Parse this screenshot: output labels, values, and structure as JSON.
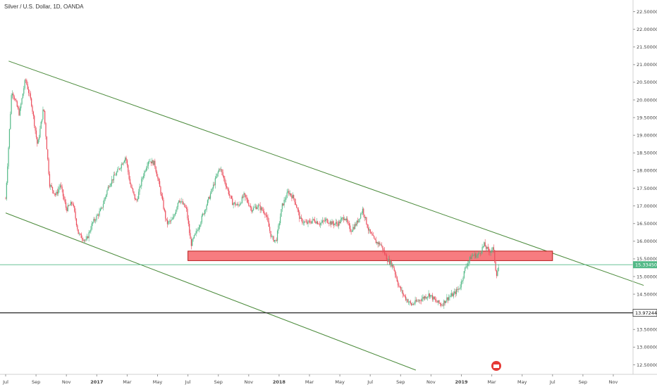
{
  "header": {
    "title": "Silver / U.S. Dollar, 1D, OANDA"
  },
  "colors": {
    "bull": "#53b987",
    "bear": "#eb4d5c",
    "trendline": "#4a8a3a",
    "zone_fill": "#f77c80",
    "zone_stroke": "#b71c1c",
    "price_line": "#53b987",
    "support_line": "#333333"
  },
  "chart_data": {
    "type": "candlestick",
    "title": "Silver / U.S. Dollar, 1D, OANDA",
    "y_ticks": [
      "12.50000",
      "13.00000",
      "13.50000",
      "14.00000",
      "14.50000",
      "15.00000",
      "15.50000",
      "16.00000",
      "16.50000",
      "17.00000",
      "17.50000",
      "18.00000",
      "18.50000",
      "19.00000",
      "19.50000",
      "20.00000",
      "20.50000",
      "21.00000",
      "21.50000",
      "22.00000",
      "22.50000"
    ],
    "ylim": [
      12.35,
      22.75
    ],
    "x_ticks": [
      {
        "label": "Jul",
        "m": 0
      },
      {
        "label": "Sep",
        "m": 2
      },
      {
        "label": "Nov",
        "m": 4
      },
      {
        "label": "2017",
        "m": 6,
        "strong": true
      },
      {
        "label": "Mar",
        "m": 8
      },
      {
        "label": "May",
        "m": 10
      },
      {
        "label": "Jul",
        "m": 12
      },
      {
        "label": "Sep",
        "m": 14
      },
      {
        "label": "Nov",
        "m": 16
      },
      {
        "label": "2018",
        "m": 18,
        "strong": true
      },
      {
        "label": "Mar",
        "m": 20
      },
      {
        "label": "May",
        "m": 22
      },
      {
        "label": "Jul",
        "m": 24
      },
      {
        "label": "Sep",
        "m": 26
      },
      {
        "label": "Nov",
        "m": 28
      },
      {
        "label": "2019",
        "m": 30,
        "strong": true
      },
      {
        "label": "Mar",
        "m": 32
      },
      {
        "label": "May",
        "m": 34
      },
      {
        "label": "Jul",
        "m": 36
      },
      {
        "label": "Sep",
        "m": 38
      },
      {
        "label": "Nov",
        "m": 40
      }
    ],
    "x_axis_start": "2016-07",
    "x_axis_end": "2019-11",
    "price_path": [
      {
        "m": 0.0,
        "v": 17.2
      },
      {
        "m": 0.4,
        "v": 20.3
      },
      {
        "m": 0.9,
        "v": 19.6
      },
      {
        "m": 1.3,
        "v": 20.6
      },
      {
        "m": 1.7,
        "v": 19.9
      },
      {
        "m": 2.1,
        "v": 18.7
      },
      {
        "m": 2.5,
        "v": 19.8
      },
      {
        "m": 2.9,
        "v": 17.6
      },
      {
        "m": 3.3,
        "v": 17.3
      },
      {
        "m": 3.6,
        "v": 17.6
      },
      {
        "m": 4.0,
        "v": 16.9
      },
      {
        "m": 4.4,
        "v": 17.1
      },
      {
        "m": 4.8,
        "v": 16.2
      },
      {
        "m": 5.3,
        "v": 16.0
      },
      {
        "m": 5.7,
        "v": 16.5
      },
      {
        "m": 6.3,
        "v": 16.9
      },
      {
        "m": 6.8,
        "v": 17.6
      },
      {
        "m": 7.4,
        "v": 18.0
      },
      {
        "m": 7.9,
        "v": 18.4
      },
      {
        "m": 8.2,
        "v": 17.6
      },
      {
        "m": 8.6,
        "v": 17.1
      },
      {
        "m": 9.0,
        "v": 17.8
      },
      {
        "m": 9.4,
        "v": 18.3
      },
      {
        "m": 9.8,
        "v": 18.2
      },
      {
        "m": 10.2,
        "v": 17.4
      },
      {
        "m": 10.6,
        "v": 16.5
      },
      {
        "m": 11.0,
        "v": 16.6
      },
      {
        "m": 11.4,
        "v": 17.2
      },
      {
        "m": 11.9,
        "v": 16.9
      },
      {
        "m": 12.2,
        "v": 15.9
      },
      {
        "m": 12.6,
        "v": 16.3
      },
      {
        "m": 13.2,
        "v": 17.0
      },
      {
        "m": 13.7,
        "v": 17.6
      },
      {
        "m": 14.1,
        "v": 18.1
      },
      {
        "m": 14.5,
        "v": 17.6
      },
      {
        "m": 14.9,
        "v": 17.1
      },
      {
        "m": 15.3,
        "v": 17.0
      },
      {
        "m": 15.7,
        "v": 17.3
      },
      {
        "m": 16.2,
        "v": 16.9
      },
      {
        "m": 16.6,
        "v": 17.0
      },
      {
        "m": 17.1,
        "v": 16.8
      },
      {
        "m": 17.5,
        "v": 16.1
      },
      {
        "m": 17.8,
        "v": 16.0
      },
      {
        "m": 18.2,
        "v": 17.0
      },
      {
        "m": 18.6,
        "v": 17.4
      },
      {
        "m": 19.0,
        "v": 17.2
      },
      {
        "m": 19.4,
        "v": 16.6
      },
      {
        "m": 19.8,
        "v": 16.5
      },
      {
        "m": 20.3,
        "v": 16.6
      },
      {
        "m": 20.7,
        "v": 16.5
      },
      {
        "m": 21.1,
        "v": 16.6
      },
      {
        "m": 21.5,
        "v": 16.5
      },
      {
        "m": 21.9,
        "v": 16.5
      },
      {
        "m": 22.3,
        "v": 16.7
      },
      {
        "m": 22.7,
        "v": 16.3
      },
      {
        "m": 23.1,
        "v": 16.5
      },
      {
        "m": 23.5,
        "v": 16.9
      },
      {
        "m": 23.9,
        "v": 16.3
      },
      {
        "m": 24.3,
        "v": 16.0
      },
      {
        "m": 24.7,
        "v": 15.9
      },
      {
        "m": 25.1,
        "v": 15.5
      },
      {
        "m": 25.5,
        "v": 15.3
      },
      {
        "m": 25.9,
        "v": 14.7
      },
      {
        "m": 26.3,
        "v": 14.4
      },
      {
        "m": 26.7,
        "v": 14.2
      },
      {
        "m": 27.1,
        "v": 14.3
      },
      {
        "m": 27.5,
        "v": 14.4
      },
      {
        "m": 27.9,
        "v": 14.5
      },
      {
        "m": 28.3,
        "v": 14.3
      },
      {
        "m": 28.7,
        "v": 14.2
      },
      {
        "m": 29.1,
        "v": 14.4
      },
      {
        "m": 29.5,
        "v": 14.5
      },
      {
        "m": 29.9,
        "v": 14.7
      },
      {
        "m": 30.3,
        "v": 15.3
      },
      {
        "m": 30.7,
        "v": 15.6
      },
      {
        "m": 31.1,
        "v": 15.6
      },
      {
        "m": 31.5,
        "v": 15.9
      },
      {
        "m": 31.8,
        "v": 15.7
      },
      {
        "m": 32.1,
        "v": 15.8
      },
      {
        "m": 32.3,
        "v": 15.05
      },
      {
        "m": 32.5,
        "v": 15.33
      }
    ],
    "trendlines": [
      {
        "name": "upper-channel",
        "points": [
          {
            "m": 0.2,
            "v": 21.1
          },
          {
            "m": 42.0,
            "v": 14.75
          }
        ]
      },
      {
        "name": "lower-channel",
        "points": [
          {
            "m": 0.0,
            "v": 16.8
          },
          {
            "m": 27.0,
            "v": 12.35
          }
        ]
      }
    ],
    "zone": {
      "m_start": 12.0,
      "m_end": 36.0,
      "v_low": 15.45,
      "v_high": 15.72
    },
    "price_line": {
      "value": 15.3345,
      "label": "15.33450"
    },
    "support_line": {
      "value": 13.97244,
      "label": "13.97244"
    }
  }
}
